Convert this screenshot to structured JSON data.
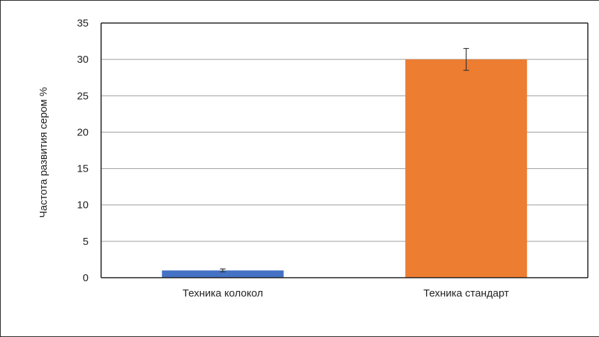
{
  "chart_data": {
    "type": "bar",
    "title": "",
    "xlabel": "",
    "ylabel": "Частота развития сером %",
    "ylim": [
      0,
      35
    ],
    "yticks": [
      0,
      5,
      10,
      15,
      20,
      25,
      30,
      35
    ],
    "grid": true,
    "legend": "none",
    "categories": [
      "Техника колокол",
      "Техника стандарт"
    ],
    "values": [
      1.0,
      30.0
    ],
    "error": [
      0.2,
      1.5
    ],
    "colors": [
      "#4472c4",
      "#ed7d31"
    ]
  }
}
